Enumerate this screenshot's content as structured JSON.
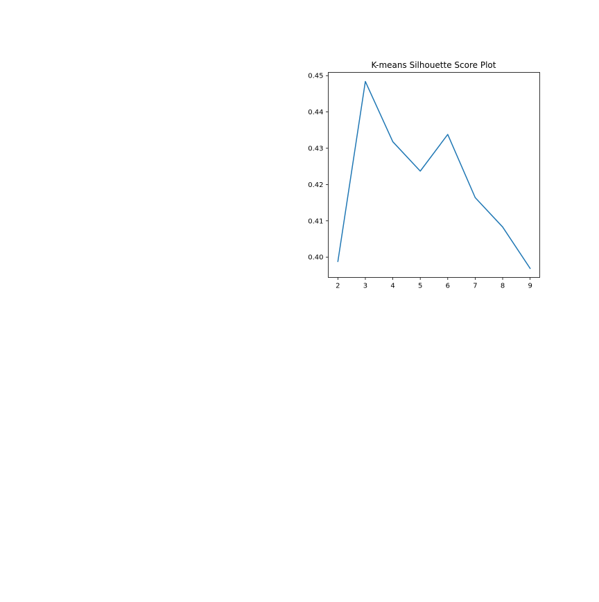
{
  "chart_data": {
    "type": "line",
    "title": "K-means Silhouette Score Plot",
    "xlabel": "",
    "ylabel": "",
    "x": [
      2,
      3,
      4,
      5,
      6,
      7,
      8,
      9
    ],
    "series": [
      {
        "values": [
          0.3988,
          0.4484,
          0.4318,
          0.4237,
          0.4338,
          0.4164,
          0.4083,
          0.3969
        ],
        "color": "#1f77b4"
      }
    ],
    "xticks": [
      2,
      3,
      4,
      5,
      6,
      7,
      8,
      9
    ],
    "xtick_labels": [
      "2",
      "3",
      "4",
      "5",
      "6",
      "7",
      "8",
      "9"
    ],
    "yticks": [
      0.4,
      0.41,
      0.42,
      0.43,
      0.44,
      0.45
    ],
    "ytick_labels": [
      "0.40",
      "0.41",
      "0.42",
      "0.43",
      "0.44",
      "0.45"
    ],
    "xlim": [
      1.65,
      9.35
    ],
    "ylim": [
      0.3944,
      0.4509
    ],
    "grid": false,
    "legend": "none"
  }
}
